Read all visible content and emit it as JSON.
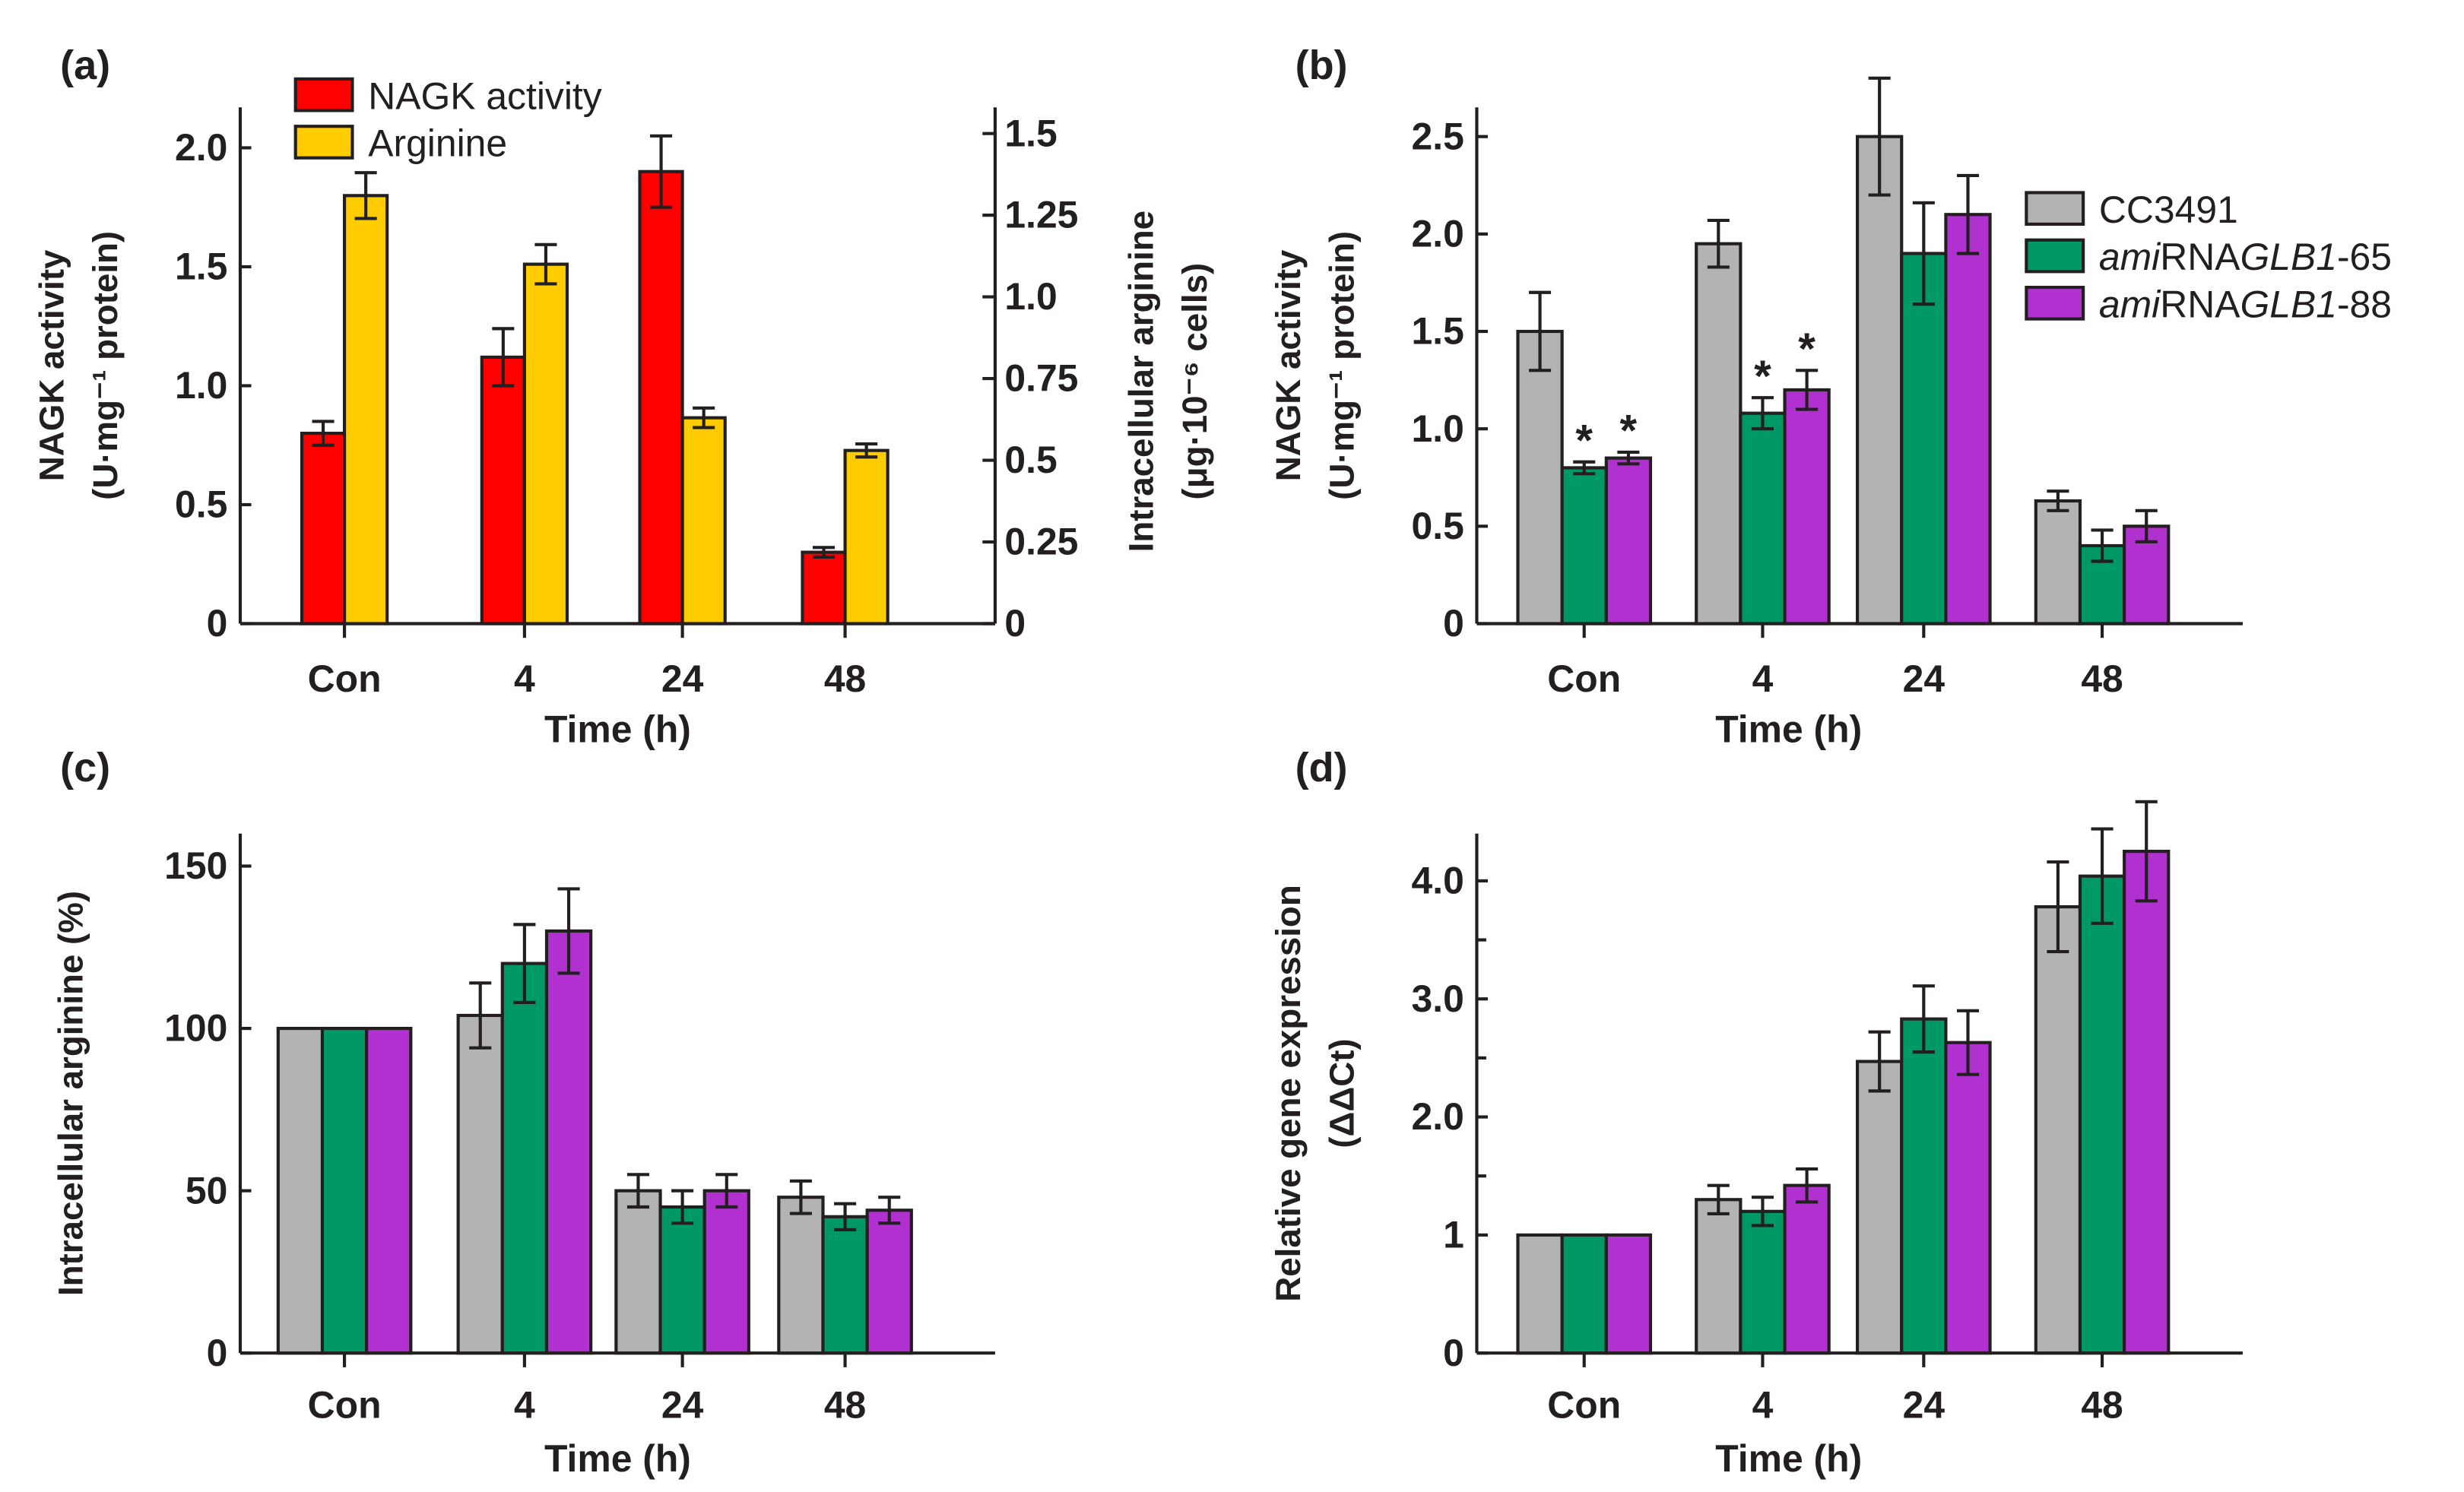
{
  "colors": {
    "nagk": "#ff0000",
    "arginine": "#ffcc00",
    "CC3491": "#b3b3b3",
    "amiRNAGLB1-65": "#009966",
    "amiRNAGLB1-88": "#b030d0",
    "axis": "#231f20"
  },
  "chart_data": [
    {
      "panel": "(a)",
      "type": "bar",
      "categories": [
        "Con",
        "4",
        "24",
        "48"
      ],
      "xlabel": "Time (h)",
      "ylabel": [
        "NAGK activity",
        "(U·mg⁻¹ protein)"
      ],
      "ylabel_right": [
        "Intracellular arginine",
        "(μg·10⁻⁶ cells)"
      ],
      "ylim": [
        0,
        2.17
      ],
      "yticks": [
        "0",
        "0.5",
        "1.0",
        "1.5",
        "2.0"
      ],
      "ylim_right": [
        0,
        1.58
      ],
      "yticks_right": [
        "0",
        "0.25",
        "0.5",
        "0.75",
        "1.0",
        "1.25",
        "1.5"
      ],
      "legend_position": "top-left",
      "series": [
        {
          "name": "NAGK activity",
          "axis": "left",
          "values": [
            0.8,
            1.12,
            1.9,
            0.3
          ],
          "errors": [
            0.05,
            0.12,
            0.15,
            0.02
          ]
        },
        {
          "name": "Arginine",
          "axis": "right",
          "values": [
            1.31,
            1.1,
            0.63,
            0.53
          ],
          "errors": [
            0.07,
            0.06,
            0.03,
            0.02
          ]
        }
      ]
    },
    {
      "panel": "(b)",
      "type": "bar",
      "categories": [
        "Con",
        "4",
        "24",
        "48"
      ],
      "xlabel": "Time (h)",
      "ylabel": [
        "NAGK activity",
        "(U·mg⁻¹ protein)"
      ],
      "ylim": [
        0,
        2.65
      ],
      "yticks": [
        "0",
        "0.5",
        "1.0",
        "1.5",
        "2.0",
        "2.5"
      ],
      "legend_position": "right",
      "series": [
        {
          "name": "CC3491",
          "values": [
            1.5,
            1.95,
            2.5,
            0.63
          ],
          "errors": [
            0.2,
            0.12,
            0.3,
            0.05
          ]
        },
        {
          "name": "amiRNAGLB1-65",
          "values": [
            0.8,
            1.08,
            1.9,
            0.4
          ],
          "errors": [
            0.03,
            0.08,
            0.26,
            0.08
          ]
        },
        {
          "name": "amiRNAGLB1-88",
          "values": [
            0.85,
            1.2,
            2.1,
            0.5
          ],
          "errors": [
            0.03,
            0.1,
            0.2,
            0.08
          ]
        }
      ],
      "annotations": [
        {
          "text": "*",
          "series": 1,
          "category": "Con"
        },
        {
          "text": "*",
          "series": 2,
          "category": "Con"
        },
        {
          "text": "*",
          "series": 1,
          "category": "4"
        },
        {
          "text": "*",
          "series": 2,
          "category": "4"
        }
      ]
    },
    {
      "panel": "(c)",
      "type": "bar",
      "categories": [
        "Con",
        "4",
        "24",
        "48"
      ],
      "xlabel": "Time (h)",
      "ylabel": [
        "Intracellular arginine (%)"
      ],
      "ylim": [
        0,
        160
      ],
      "yticks": [
        "0",
        "50",
        "100",
        "150"
      ],
      "series": [
        {
          "name": "CC3491",
          "values": [
            100,
            104,
            50,
            48
          ],
          "errors": [
            0,
            10,
            5,
            5
          ]
        },
        {
          "name": "amiRNAGLB1-65",
          "values": [
            100,
            120,
            45,
            42
          ],
          "errors": [
            0,
            12,
            5,
            4
          ]
        },
        {
          "name": "amiRNAGLB1-88",
          "values": [
            100,
            130,
            50,
            44
          ],
          "errors": [
            0,
            13,
            5,
            4
          ]
        }
      ]
    },
    {
      "panel": "(d)",
      "type": "bar",
      "categories": [
        "Con",
        "4",
        "24",
        "48"
      ],
      "xlabel": "Time (h)",
      "ylabel": [
        "Relative gene expression",
        "(ΔΔCt)"
      ],
      "ylim": [
        0,
        4.4
      ],
      "yticks": [
        "0",
        "1",
        "2.0",
        "3.0",
        "4.0"
      ],
      "series": [
        {
          "name": "CC3491",
          "values": [
            1,
            1.3,
            2.47,
            3.78
          ],
          "errors": [
            0,
            0.12,
            0.25,
            0.38
          ]
        },
        {
          "name": "amiRNAGLB1-65",
          "values": [
            1,
            1.2,
            2.83,
            4.04
          ],
          "errors": [
            0,
            0.12,
            0.28,
            0.4
          ]
        },
        {
          "name": "amiRNAGLB1-88",
          "values": [
            1,
            1.42,
            2.63,
            4.25
          ],
          "errors": [
            0,
            0.14,
            0.27,
            0.42
          ]
        }
      ]
    }
  ]
}
